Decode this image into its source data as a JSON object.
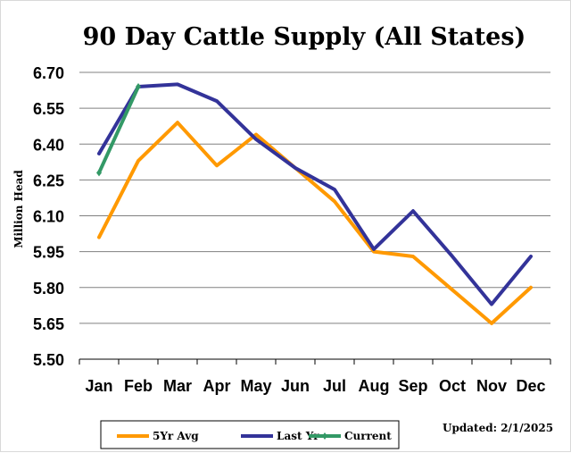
{
  "chart_data": {
    "type": "line",
    "title": "90 Day Cattle Supply (All States)",
    "ylabel": "Million Head",
    "xlabel": "",
    "categories": [
      "Jan",
      "Feb",
      "Mar",
      "Apr",
      "May",
      "Jun",
      "Jul",
      "Aug",
      "Sep",
      "Oct",
      "Nov",
      "Dec"
    ],
    "ylim": [
      5.5,
      6.7
    ],
    "yticks": [
      "5.50",
      "5.65",
      "5.80",
      "5.95",
      "6.10",
      "6.25",
      "6.40",
      "6.55",
      "6.70"
    ],
    "grid": true,
    "legend_position": "bottom",
    "series": [
      {
        "name": "5Yr Avg",
        "color": "#ff9900",
        "values": [
          6.01,
          6.33,
          6.49,
          6.31,
          6.44,
          6.3,
          6.16,
          5.95,
          5.93,
          5.79,
          5.65,
          5.8
        ]
      },
      {
        "name": "Last Yr",
        "color": "#333399",
        "values": [
          6.36,
          6.64,
          6.65,
          6.58,
          6.42,
          6.3,
          6.21,
          5.96,
          6.12,
          5.93,
          5.73,
          5.93
        ]
      },
      {
        "name": "Current",
        "color": "#339966",
        "values": [
          6.28,
          6.64,
          null,
          null,
          null,
          null,
          null,
          null,
          null,
          null,
          null,
          null
        ]
      }
    ],
    "annotation": "Updated: 2/1/2025"
  }
}
